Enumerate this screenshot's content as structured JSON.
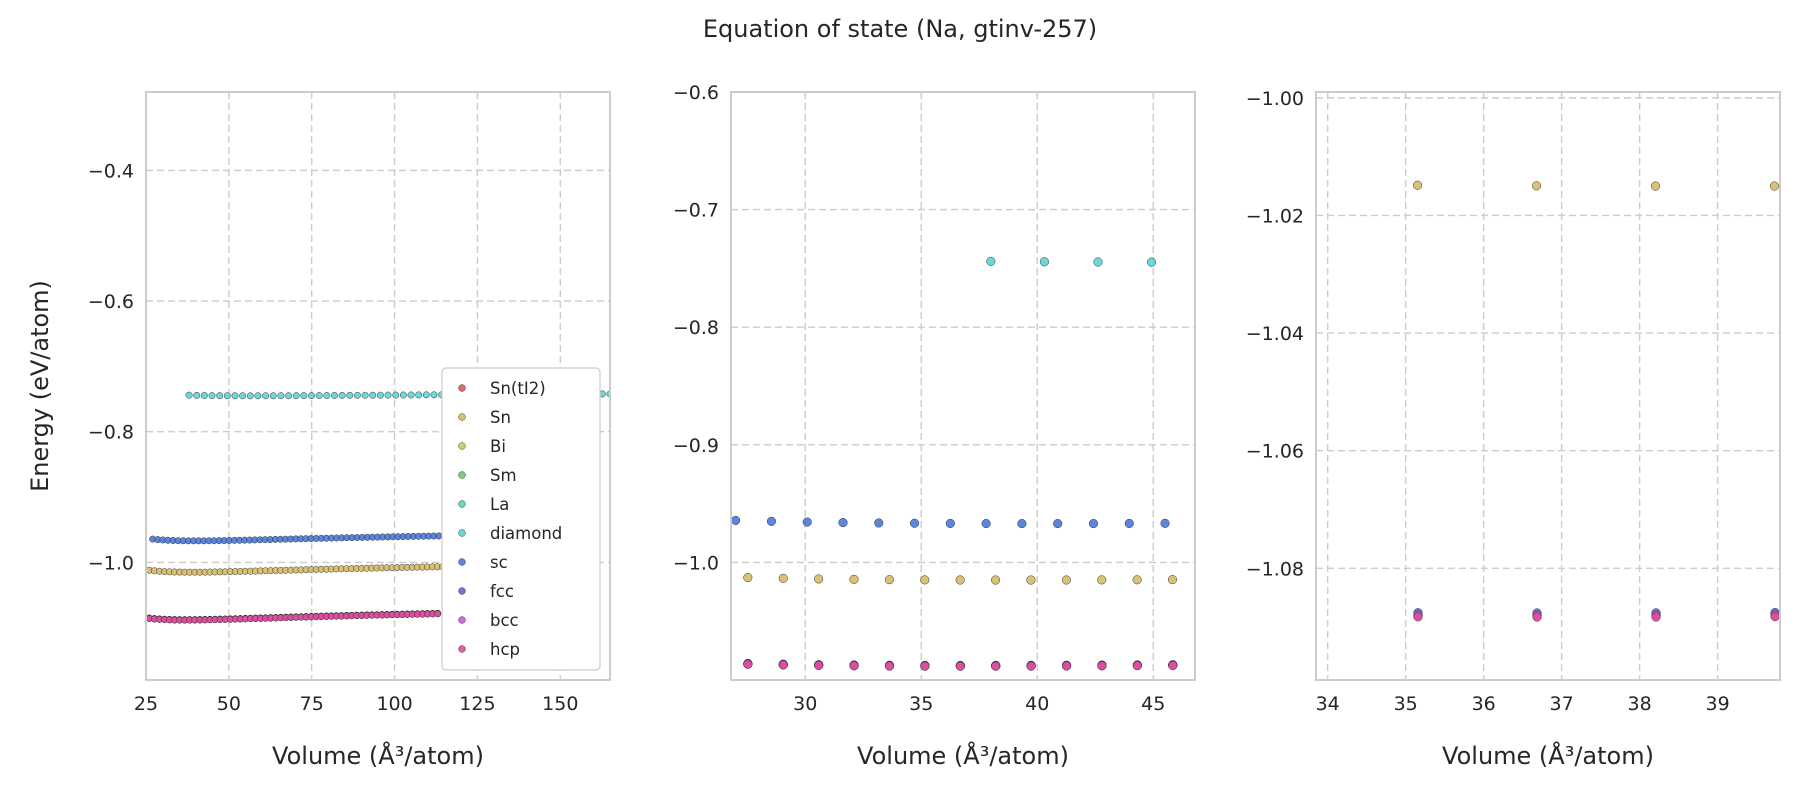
{
  "chart_data": {
    "type": "scatter",
    "title": "Equation of state (Na, gtinv-257)",
    "legend_placement": "lower-right",
    "series": [
      {
        "name": "Sn(tI2)",
        "color": "#d65f5f",
        "model": {
          "type": "bm",
          "e0": -1.088,
          "v0": 37.0,
          "b": 0.035,
          "shift": 0.0
        }
      },
      {
        "name": "Sn",
        "color": "#d5bb67",
        "model": {
          "type": "bm",
          "e0": -1.015,
          "v0": 38.8,
          "b": 0.032,
          "shift": 0.0
        }
      },
      {
        "name": "Bi",
        "color": "#b8d56a",
        "model": {
          "type": "bm",
          "e0": -1.088,
          "v0": 37.0,
          "b": 0.035,
          "shift": 0.0
        }
      },
      {
        "name": "Sm",
        "color": "#6acc64",
        "model": {
          "type": "bm",
          "e0": -1.088,
          "v0": 37.0,
          "b": 0.035,
          "shift": 0.0
        }
      },
      {
        "name": "La",
        "color": "#57d99c",
        "model": {
          "type": "bm",
          "e0": -1.088,
          "v0": 37.0,
          "b": 0.035,
          "shift": 0.0
        }
      },
      {
        "name": "diamond",
        "color": "#5ed4d4",
        "model": {
          "type": "bm",
          "e0": -0.745,
          "v0": 56.0,
          "b": 0.011,
          "shift": 0.0
        }
      },
      {
        "name": "sc",
        "color": "#4a78d8",
        "model": {
          "type": "bm",
          "e0": -0.967,
          "v0": 40.0,
          "b": 0.03,
          "shift": 0.0
        }
      },
      {
        "name": "fcc",
        "color": "#6f5ed8",
        "model": {
          "type": "bm",
          "e0": -1.088,
          "v0": 37.0,
          "b": 0.035,
          "shift": 0.0004
        }
      },
      {
        "name": "bcc",
        "color": "#c65ed6",
        "model": {
          "type": "bm",
          "e0": -1.088,
          "v0": 37.0,
          "b": 0.035,
          "shift": 0.0
        }
      },
      {
        "name": "hcp",
        "color": "#e04d9a",
        "model": {
          "type": "bm",
          "e0": -1.088,
          "v0": 37.0,
          "b": 0.035,
          "shift": -0.0003
        }
      }
    ],
    "panels": [
      {
        "xlabel": "Volume (Å³/atom)",
        "ylabel": "Energy (eV/atom)",
        "xlim": [
          25,
          165
        ],
        "ylim": [
          -1.18,
          -0.28
        ],
        "xticks": [
          25,
          50,
          75,
          100,
          125,
          150
        ],
        "xtick_labels": [
          "25",
          "50",
          "75",
          "100",
          "125",
          "150"
        ],
        "yticks": [
          -1.0,
          -0.8,
          -0.6,
          -0.4
        ],
        "ytick_labels": [
          "−1.0",
          "−0.8",
          "−0.6",
          "−0.4"
        ],
        "grid": true,
        "legend": true,
        "ranges": [
          {
            "series": "diamond",
            "vmin": 38,
            "vmax": 165,
            "n": 56
          },
          {
            "series": "sc",
            "vmin": 27,
            "vmax": 118,
            "n": 60
          },
          {
            "series": "Sn",
            "vmin": 26,
            "vmax": 116,
            "n": 60
          },
          {
            "series": "Sn(tI2)",
            "vmin": 26,
            "vmax": 113,
            "n": 58
          },
          {
            "series": "Bi",
            "vmin": 26,
            "vmax": 113,
            "n": 58
          },
          {
            "series": "Sm",
            "vmin": 26,
            "vmax": 113,
            "n": 58
          },
          {
            "series": "La",
            "vmin": 26,
            "vmax": 113,
            "n": 58
          },
          {
            "series": "fcc",
            "vmin": 26,
            "vmax": 113,
            "n": 58
          },
          {
            "series": "bcc",
            "vmin": 26,
            "vmax": 113,
            "n": 58
          },
          {
            "series": "hcp",
            "vmin": 26,
            "vmax": 113,
            "n": 58
          }
        ]
      },
      {
        "xlabel": "Volume (Å³/atom)",
        "ylabel": "",
        "xlim": [
          26.8,
          46.8
        ],
        "ylim": [
          -1.1,
          -0.6
        ],
        "xticks": [
          30,
          35,
          40,
          45
        ],
        "xtick_labels": [
          "30",
          "35",
          "40",
          "45"
        ],
        "yticks": [
          -1.0,
          -0.9,
          -0.8,
          -0.7,
          -0.6
        ],
        "ytick_labels": [
          "−1.0",
          "−0.9",
          "−0.8",
          "−0.7",
          "−0.6"
        ],
        "grid": true,
        "legend": false,
        "ranges": [
          {
            "series": "diamond",
            "vmin": 38,
            "vmax": 165,
            "n": 56
          },
          {
            "series": "sc",
            "vmin": 27,
            "vmax": 118,
            "n": 60
          },
          {
            "series": "Sn",
            "vmin": 26,
            "vmax": 116,
            "n": 60
          },
          {
            "series": "Sn(tI2)",
            "vmin": 26,
            "vmax": 113,
            "n": 58
          },
          {
            "series": "Bi",
            "vmin": 26,
            "vmax": 113,
            "n": 58
          },
          {
            "series": "Sm",
            "vmin": 26,
            "vmax": 113,
            "n": 58
          },
          {
            "series": "La",
            "vmin": 26,
            "vmax": 113,
            "n": 58
          },
          {
            "series": "fcc",
            "vmin": 26,
            "vmax": 113,
            "n": 58
          },
          {
            "series": "bcc",
            "vmin": 26,
            "vmax": 113,
            "n": 58
          },
          {
            "series": "hcp",
            "vmin": 26,
            "vmax": 113,
            "n": 58
          }
        ]
      },
      {
        "xlabel": "Volume (Å³/atom)",
        "ylabel": "",
        "xlim": [
          33.85,
          39.8
        ],
        "ylim": [
          -1.099,
          -0.999
        ],
        "xticks": [
          34,
          35,
          36,
          37,
          38,
          39
        ],
        "xtick_labels": [
          "34",
          "35",
          "36",
          "37",
          "38",
          "39"
        ],
        "yticks": [
          -1.08,
          -1.06,
          -1.04,
          -1.02,
          -1.0
        ],
        "ytick_labels": [
          "−1.08",
          "−1.06",
          "−1.04",
          "−1.02",
          "−1.00"
        ],
        "grid": true,
        "legend": false,
        "ranges": [
          {
            "series": "Sn",
            "vmin": 26,
            "vmax": 116,
            "n": 60
          },
          {
            "series": "Sn(tI2)",
            "vmin": 26,
            "vmax": 113,
            "n": 58
          },
          {
            "series": "Bi",
            "vmin": 26,
            "vmax": 113,
            "n": 58
          },
          {
            "series": "Sm",
            "vmin": 26,
            "vmax": 113,
            "n": 58
          },
          {
            "series": "La",
            "vmin": 26,
            "vmax": 113,
            "n": 58
          },
          {
            "series": "fcc",
            "vmin": 26,
            "vmax": 113,
            "n": 58
          },
          {
            "series": "bcc",
            "vmin": 26,
            "vmax": 113,
            "n": 58
          },
          {
            "series": "hcp",
            "vmin": 26,
            "vmax": 113,
            "n": 58
          }
        ]
      }
    ]
  }
}
